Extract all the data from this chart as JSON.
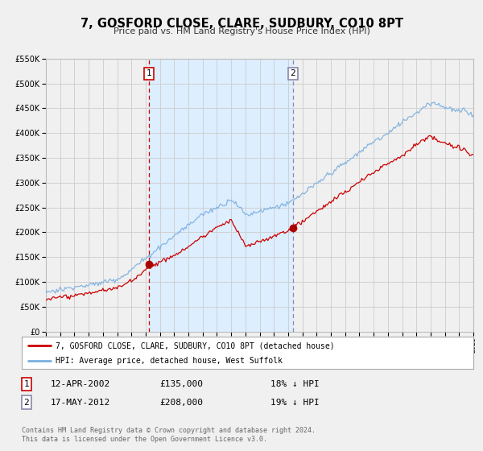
{
  "title": "7, GOSFORD CLOSE, CLARE, SUDBURY, CO10 8PT",
  "subtitle": "Price paid vs. HM Land Registry's House Price Index (HPI)",
  "sale1_price": 135000,
  "sale1_date_str": "12-APR-2002",
  "sale1_hpi_diff": "18% ↓ HPI",
  "sale2_price": 208000,
  "sale2_date_str": "17-MAY-2012",
  "sale2_hpi_diff": "19% ↓ HPI",
  "property_line_color": "#cc0000",
  "hpi_line_color": "#7aafe0",
  "marker_color": "#aa0000",
  "vline_color_sale1": "#cc0000",
  "vline_color_sale2": "#8888aa",
  "highlight_color": "#ddeeff",
  "legend_property": "7, GOSFORD CLOSE, CLARE, SUDBURY, CO10 8PT (detached house)",
  "legend_hpi": "HPI: Average price, detached house, West Suffolk",
  "footer1": "Contains HM Land Registry data © Crown copyright and database right 2024.",
  "footer2": "This data is licensed under the Open Government Licence v3.0.",
  "ylim_max": 550000,
  "yticks": [
    0,
    50000,
    100000,
    150000,
    200000,
    250000,
    300000,
    350000,
    400000,
    450000,
    500000,
    550000
  ],
  "background_color": "#f0f0f0",
  "plot_bg_color": "#f0f0f0"
}
